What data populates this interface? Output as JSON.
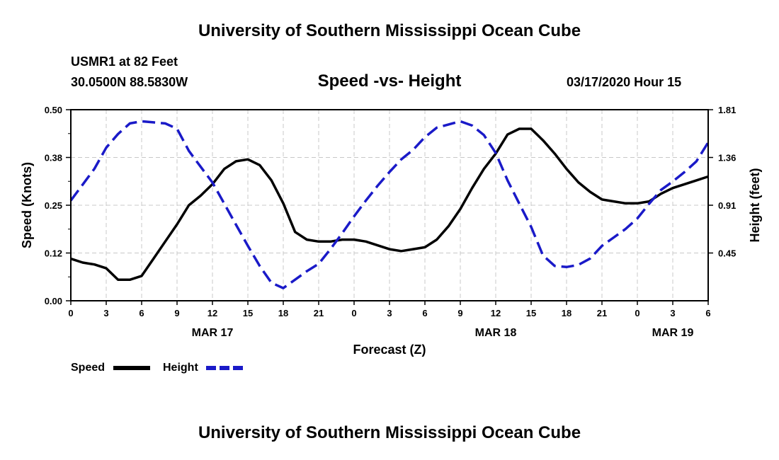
{
  "header": {
    "title": "University of Southern Mississippi Ocean Cube",
    "station": "USMR1 at 82 Feet",
    "coords": "30.0500N 88.5830W",
    "subtitle": "Speed -vs- Height",
    "datetime": "03/17/2020 Hour 15"
  },
  "footer": {
    "title": "University of Southern Mississippi Ocean Cube"
  },
  "chart_data": {
    "type": "line",
    "xlabel": "Forecast (Z)",
    "ylabel": "Speed (Knots)",
    "y2label": "Height (feet)",
    "xlim": [
      0,
      54
    ],
    "ylim": [
      0,
      0.5
    ],
    "y2lim": [
      0,
      1.81
    ],
    "x_ticks": [
      0,
      3,
      6,
      9,
      12,
      15,
      18,
      21,
      24,
      27,
      30,
      33,
      36,
      39,
      42,
      45,
      48,
      51,
      54
    ],
    "x_tick_labels": [
      "0",
      "3",
      "6",
      "9",
      "12",
      "15",
      "18",
      "21",
      "0",
      "3",
      "6",
      "9",
      "12",
      "15",
      "18",
      "21",
      "0",
      "3",
      "6"
    ],
    "y_tick_labels": [
      "0.00",
      "0.12",
      "0.25",
      "0.38",
      "0.50"
    ],
    "y2_tick_labels": [
      "0.45",
      "0.91",
      "1.36",
      "1.81"
    ],
    "date_labels": [
      {
        "x": 12,
        "label": "MAR 17"
      },
      {
        "x": 36,
        "label": "MAR 18"
      },
      {
        "x": 51,
        "label": "MAR 19"
      }
    ],
    "grid": true,
    "legend": "bottom-left",
    "series": [
      {
        "name": "Speed",
        "axis": "left",
        "color": "#000000",
        "dash": "solid",
        "x": [
          0,
          1,
          2,
          3,
          4,
          5,
          6,
          7,
          8,
          9,
          10,
          11,
          12,
          13,
          14,
          15,
          16,
          17,
          18,
          19,
          20,
          21,
          22,
          23,
          24,
          25,
          26,
          27,
          28,
          29,
          30,
          31,
          32,
          33,
          34,
          35,
          36,
          37,
          38,
          39,
          40,
          41,
          42,
          43,
          44,
          45,
          46,
          47,
          48,
          49,
          50,
          51,
          52,
          53,
          54
        ],
        "values": [
          0.11,
          0.1,
          0.095,
          0.085,
          0.055,
          0.055,
          0.065,
          0.11,
          0.155,
          0.2,
          0.25,
          0.275,
          0.305,
          0.345,
          0.365,
          0.37,
          0.355,
          0.315,
          0.255,
          0.18,
          0.16,
          0.155,
          0.155,
          0.16,
          0.16,
          0.155,
          0.145,
          0.135,
          0.13,
          0.135,
          0.14,
          0.16,
          0.195,
          0.24,
          0.295,
          0.345,
          0.385,
          0.435,
          0.45,
          0.45,
          0.42,
          0.385,
          0.345,
          0.31,
          0.285,
          0.265,
          0.26,
          0.255,
          0.255,
          0.26,
          0.28,
          0.295,
          0.305,
          0.315,
          0.325
        ]
      },
      {
        "name": "Height",
        "axis": "right",
        "color": "#1a1ac8",
        "dash": "dashed",
        "x": [
          0,
          1,
          2,
          3,
          4,
          5,
          6,
          7,
          8,
          9,
          10,
          11,
          12,
          13,
          14,
          15,
          16,
          17,
          18,
          19,
          20,
          21,
          22,
          23,
          24,
          25,
          26,
          27,
          28,
          29,
          30,
          31,
          32,
          33,
          34,
          35,
          36,
          37,
          38,
          39,
          40,
          41,
          42,
          43,
          44,
          45,
          46,
          47,
          48,
          49,
          50,
          51,
          52,
          53,
          54
        ],
        "values": [
          0.95,
          1.1,
          1.25,
          1.45,
          1.58,
          1.68,
          1.7,
          1.69,
          1.68,
          1.63,
          1.42,
          1.27,
          1.12,
          0.92,
          0.72,
          0.52,
          0.33,
          0.17,
          0.12,
          0.2,
          0.28,
          0.35,
          0.49,
          0.64,
          0.8,
          0.95,
          1.09,
          1.22,
          1.34,
          1.43,
          1.55,
          1.64,
          1.67,
          1.7,
          1.66,
          1.57,
          1.4,
          1.14,
          0.92,
          0.7,
          0.43,
          0.33,
          0.32,
          0.34,
          0.4,
          0.52,
          0.6,
          0.68,
          0.78,
          0.92,
          1.05,
          1.13,
          1.22,
          1.32,
          1.5
        ]
      }
    ]
  }
}
